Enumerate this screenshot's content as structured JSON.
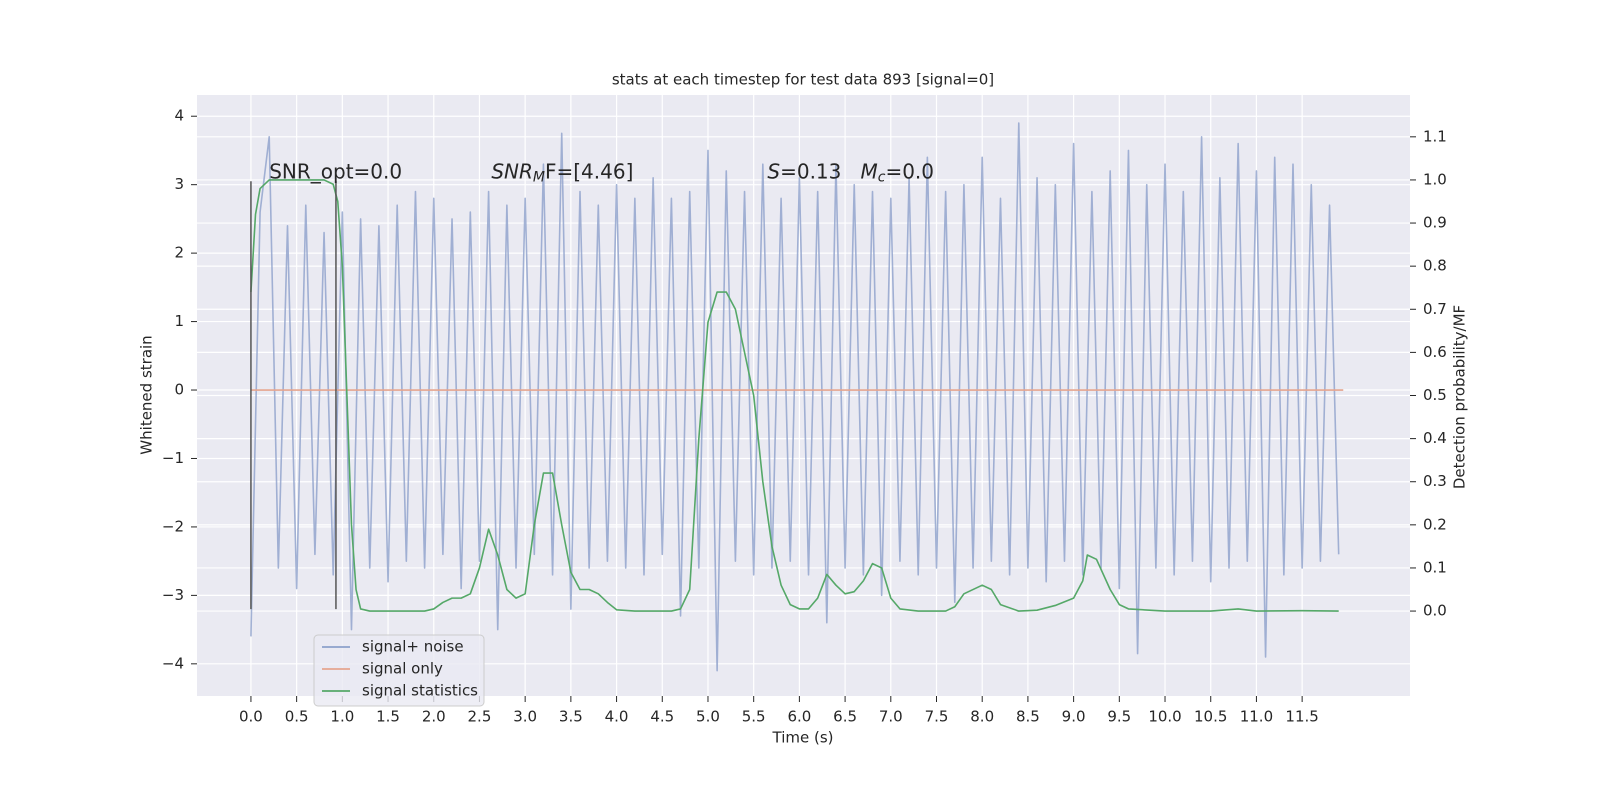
{
  "chart_data": {
    "type": "line",
    "title": "stats at each timestep for test data 893 [signal=0]",
    "x_label": "Time (s)",
    "y_label": "Whitened strain",
    "y2_label": "Detection probability/MF",
    "xlim": [
      -0.59,
      12.68
    ],
    "ylim": [
      -4.47,
      4.31
    ],
    "y2lim": [
      -0.197,
      1.197
    ],
    "xticks": [
      {
        "value": 0,
        "label": "0.0"
      },
      0.5,
      {
        "value": 1,
        "label": "1.0"
      },
      1.5,
      {
        "value": 2,
        "label": "2.0"
      },
      2.5,
      {
        "value": 3,
        "label": "3.0"
      },
      3.5,
      {
        "value": 4,
        "label": "4.0"
      },
      4.5,
      {
        "value": 5,
        "label": "5.0"
      },
      5.5,
      {
        "value": 6,
        "label": "6.0"
      },
      6.5,
      {
        "value": 7,
        "label": "7.0"
      },
      7.5,
      {
        "value": 8,
        "label": "8.0"
      },
      8.5,
      {
        "value": 9,
        "label": "9.0"
      },
      9.5,
      {
        "value": 10,
        "label": "10.0"
      },
      10.5,
      {
        "value": 11,
        "label": "11.0"
      },
      11.5
    ],
    "yticks": [
      {
        "value": -4,
        "label": "−4"
      },
      {
        "value": -3,
        "label": "−3"
      },
      {
        "value": -2,
        "label": "−2"
      },
      {
        "value": -1,
        "label": "−1"
      },
      0,
      1,
      2,
      3,
      4
    ],
    "y2ticks": [
      {
        "value": 0,
        "label": "0.0"
      },
      0.1,
      0.2,
      0.3,
      0.4,
      0.5,
      0.6,
      0.7,
      0.8,
      0.9,
      {
        "value": 1,
        "label": "1.0"
      },
      1.1
    ],
    "grid": true,
    "background": "#eaeaf2",
    "legend_loc": "lower left",
    "series": [
      {
        "name": "signal+ noise",
        "color": "#8da0cb",
        "opacity": 0.8,
        "x": [
          0,
          0.1,
          0.2,
          0.3,
          0.4,
          0.5,
          0.6,
          0.7,
          0.8,
          0.9,
          1,
          1.1,
          1.2,
          1.3,
          1.4,
          1.5,
          1.6,
          1.7,
          1.8,
          1.9,
          2,
          2.1,
          2.2,
          2.3,
          2.4,
          2.5,
          2.6,
          2.7,
          2.8,
          2.9,
          3,
          3.1,
          3.2,
          3.3,
          3.4,
          3.5,
          3.6,
          3.7,
          3.8,
          3.9,
          4,
          4.1,
          4.2,
          4.3,
          4.4,
          4.5,
          4.6,
          4.7,
          4.8,
          4.9,
          5,
          5.1,
          5.2,
          5.3,
          5.4,
          5.5,
          5.6,
          5.7,
          5.8,
          5.9,
          6,
          6.1,
          6.2,
          6.3,
          6.4,
          6.5,
          6.6,
          6.7,
          6.8,
          6.9,
          7,
          7.1,
          7.2,
          7.3,
          7.4,
          7.5,
          7.6,
          7.7,
          7.8,
          7.9,
          8,
          8.1,
          8.2,
          8.3,
          8.4,
          8.5,
          8.6,
          8.7,
          8.8,
          8.9,
          9,
          9.1,
          9.2,
          9.3,
          9.4,
          9.5,
          9.6,
          9.7,
          9.8,
          9.9,
          10,
          10.1,
          10.2,
          10.3,
          10.4,
          10.5,
          10.6,
          10.7,
          10.8,
          10.9,
          11,
          11.1,
          11.2,
          11.3,
          11.4,
          11.5,
          11.6,
          11.7,
          11.8,
          11.9
        ],
        "values": [
          -3.6,
          2.6,
          3.7,
          -2.6,
          2.4,
          -2.9,
          2.7,
          -2.4,
          2.3,
          -2.7,
          2.6,
          -3.5,
          2.5,
          -2.6,
          2.4,
          -2.8,
          2.7,
          -2.5,
          2.9,
          -2.6,
          2.8,
          -2.4,
          2.5,
          -2.9,
          2.6,
          -2.5,
          2.9,
          -3.5,
          2.7,
          -2.6,
          2.8,
          -2.4,
          3.3,
          -2.7,
          3.75,
          -3.2,
          2.9,
          -2.6,
          2.7,
          -2.5,
          3.0,
          -2.6,
          2.8,
          -2.7,
          3.1,
          -2.4,
          2.8,
          -3.3,
          2.9,
          -2.6,
          3.5,
          -4.1,
          3.2,
          -2.5,
          2.9,
          -2.7,
          3.3,
          -2.6,
          2.8,
          -2.5,
          3.1,
          -2.7,
          2.9,
          -3.4,
          3.3,
          -2.6,
          3.0,
          -2.7,
          2.9,
          -3.0,
          2.8,
          -2.5,
          3.1,
          -2.7,
          3.4,
          -2.6,
          2.9,
          -3.1,
          3.0,
          -2.6,
          3.4,
          -2.5,
          2.8,
          -2.7,
          3.9,
          -2.6,
          3.1,
          -2.8,
          3.0,
          -2.5,
          3.6,
          -2.7,
          2.9,
          -2.6,
          3.2,
          -2.9,
          3.5,
          -3.85,
          3.0,
          -2.6,
          3.3,
          -2.7,
          2.9,
          -2.5,
          3.7,
          -2.8,
          3.1,
          -2.6,
          3.6,
          -2.5,
          3.2,
          -3.9,
          3.4,
          -2.7,
          3.3,
          -2.6,
          3.0,
          -2.5,
          2.7,
          -2.4
        ]
      },
      {
        "name": "signal only",
        "color": "#e5a58f",
        "x": [
          0,
          11.95
        ],
        "values": [
          0,
          0
        ]
      },
      {
        "name": "signal statistics",
        "color": "#55a868",
        "axis": "y2",
        "x": [
          0,
          0.05,
          0.1,
          0.2,
          0.5,
          0.8,
          0.9,
          0.95,
          1,
          1.05,
          1.1,
          1.15,
          1.2,
          1.3,
          1.5,
          1.9,
          2,
          2.1,
          2.2,
          2.3,
          2.4,
          2.5,
          2.6,
          2.7,
          2.8,
          2.9,
          3,
          3.1,
          3.2,
          3.3,
          3.4,
          3.5,
          3.6,
          3.7,
          3.8,
          3.9,
          4,
          4.2,
          4.6,
          4.7,
          4.8,
          4.9,
          5,
          5.1,
          5.2,
          5.3,
          5.4,
          5.5,
          5.6,
          5.7,
          5.8,
          5.9,
          6,
          6.1,
          6.2,
          6.3,
          6.4,
          6.5,
          6.6,
          6.7,
          6.8,
          6.9,
          7,
          7.1,
          7.3,
          7.6,
          7.7,
          7.8,
          8,
          8.1,
          8.2,
          8.4,
          8.6,
          8.8,
          9,
          9.1,
          9.15,
          9.25,
          9.4,
          9.5,
          9.6,
          10,
          10.5,
          10.8,
          11,
          11.5,
          11.9
        ],
        "values": [
          0.74,
          0.92,
          0.98,
          1.0,
          1.0,
          1.0,
          0.99,
          0.95,
          0.8,
          0.5,
          0.2,
          0.05,
          0.005,
          0,
          0,
          0,
          0.005,
          0.02,
          0.03,
          0.03,
          0.04,
          0.1,
          0.19,
          0.13,
          0.05,
          0.03,
          0.04,
          0.2,
          0.32,
          0.32,
          0.2,
          0.09,
          0.05,
          0.05,
          0.04,
          0.02,
          0.003,
          0,
          0,
          0.005,
          0.05,
          0.4,
          0.67,
          0.74,
          0.74,
          0.7,
          0.6,
          0.5,
          0.3,
          0.15,
          0.06,
          0.015,
          0.005,
          0.005,
          0.03,
          0.085,
          0.06,
          0.04,
          0.045,
          0.07,
          0.11,
          0.1,
          0.03,
          0.005,
          0,
          0,
          0.01,
          0.04,
          0.06,
          0.05,
          0.015,
          0,
          0.002,
          0.013,
          0.03,
          0.07,
          0.13,
          0.12,
          0.05,
          0.015,
          0.005,
          0,
          0,
          0.005,
          0,
          0.001,
          0
        ]
      }
    ],
    "vlines": {
      "x": [
        0,
        0.93
      ],
      "ymin": -3.2,
      "ymax": 3.05,
      "color": "#555555"
    },
    "annotations": [
      {
        "x": 0.2,
        "y": 3.18,
        "parts": [
          {
            "t": "SNR_opt=0.0"
          }
        ]
      },
      {
        "x": 2.63,
        "y": 3.18,
        "parts": [
          {
            "t": "SNR",
            "italic": true
          },
          {
            "t": "M",
            "italic": true,
            "sub": true
          },
          {
            "t": "F=[4.46]"
          }
        ]
      },
      {
        "x": 5.65,
        "y": 3.18,
        "parts": [
          {
            "t": "S",
            "italic": true
          },
          {
            "t": "=0.13   "
          },
          {
            "t": "M",
            "italic": true
          },
          {
            "t": "c",
            "italic": true,
            "sub": true
          },
          {
            "t": "=0.0"
          }
        ]
      }
    ]
  }
}
